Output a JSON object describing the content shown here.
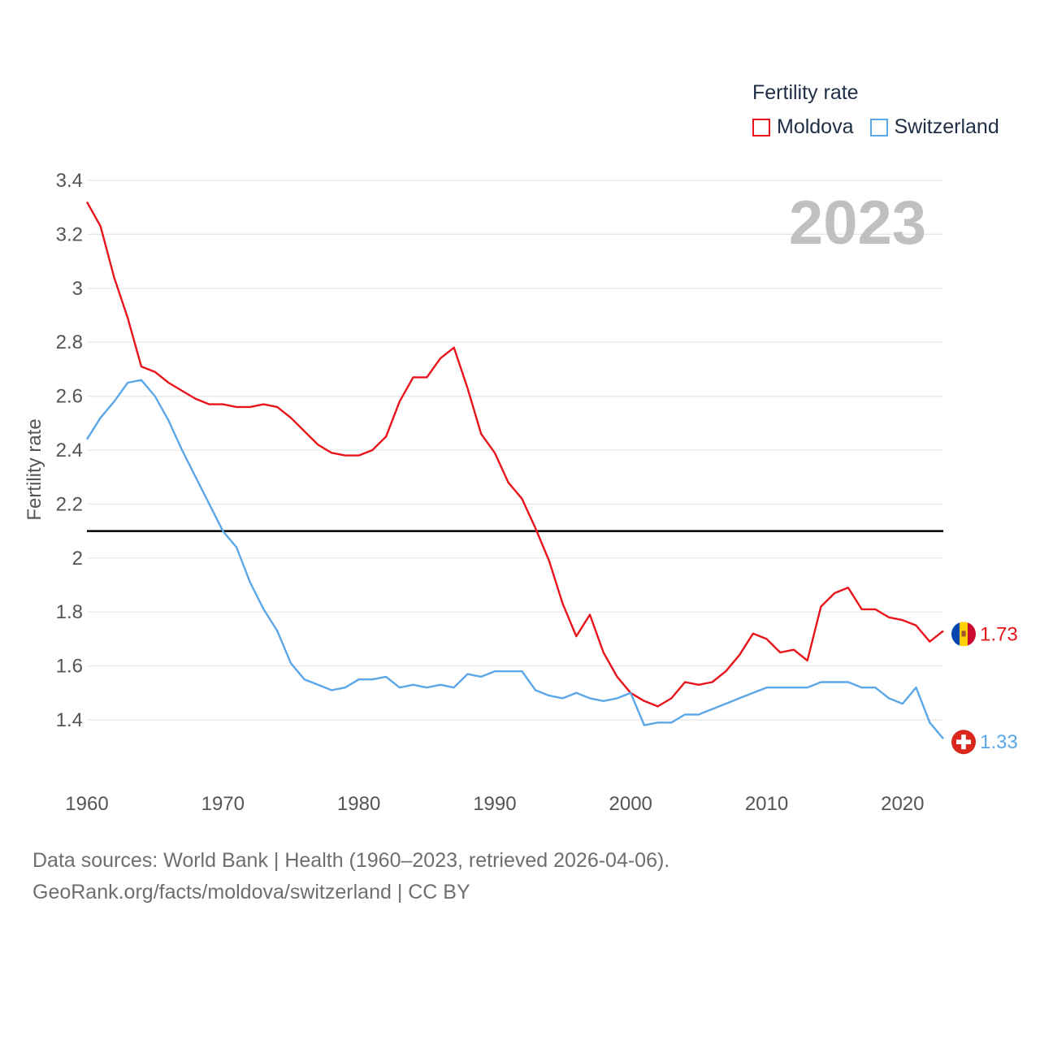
{
  "legend": {
    "title": "Fertility rate",
    "items": [
      {
        "label": "Moldova",
        "color": "#e8141c"
      },
      {
        "label": "Switzerland",
        "color": "#5ba7e8"
      }
    ]
  },
  "source": {
    "line1": "Data sources: World Bank | Health (1960–2023, retrieved 2026-04-06).",
    "line2": "GeoRank.org/facts/moldova/switzerland | CC BY"
  },
  "chart_data": {
    "type": "line",
    "ylabel": "Fertility rate",
    "year_label": "2023",
    "xlim": [
      1960,
      2023
    ],
    "ylim": [
      1.3,
      3.4
    ],
    "x_ticks": [
      1960,
      1970,
      1980,
      1990,
      2000,
      2010,
      2020
    ],
    "y_ticks": [
      1.4,
      1.6,
      1.8,
      2,
      2.2,
      2.4,
      2.6,
      2.8,
      3,
      3.2,
      3.4
    ],
    "y_tick_labels": [
      "1.4",
      "1.6",
      "1.8",
      "2",
      "2.2",
      "2.4",
      "2.6",
      "2.8",
      "3",
      "3.2",
      "3.4"
    ],
    "reference_line": 2.1,
    "x": [
      1960,
      1961,
      1962,
      1963,
      1964,
      1965,
      1966,
      1967,
      1968,
      1969,
      1970,
      1971,
      1972,
      1973,
      1974,
      1975,
      1976,
      1977,
      1978,
      1979,
      1980,
      1981,
      1982,
      1983,
      1984,
      1985,
      1986,
      1987,
      1988,
      1989,
      1990,
      1991,
      1992,
      1993,
      1994,
      1995,
      1996,
      1997,
      1998,
      1999,
      2000,
      2001,
      2002,
      2003,
      2004,
      2005,
      2006,
      2007,
      2008,
      2009,
      2010,
      2011,
      2012,
      2013,
      2014,
      2015,
      2016,
      2017,
      2018,
      2019,
      2020,
      2021,
      2022,
      2023
    ],
    "series": [
      {
        "name": "Moldova",
        "color": "#e8141c",
        "end_label": "1.73",
        "values": [
          3.32,
          3.23,
          3.04,
          2.89,
          2.71,
          2.69,
          2.65,
          2.62,
          2.59,
          2.57,
          2.57,
          2.56,
          2.56,
          2.57,
          2.56,
          2.52,
          2.47,
          2.42,
          2.39,
          2.38,
          2.38,
          2.4,
          2.45,
          2.58,
          2.67,
          2.67,
          2.74,
          2.78,
          2.63,
          2.46,
          2.39,
          2.28,
          2.22,
          2.11,
          1.99,
          1.83,
          1.71,
          1.79,
          1.65,
          1.56,
          1.5,
          1.47,
          1.45,
          1.48,
          1.54,
          1.53,
          1.54,
          1.58,
          1.64,
          1.72,
          1.7,
          1.65,
          1.66,
          1.62,
          1.82,
          1.87,
          1.89,
          1.81,
          1.81,
          1.78,
          1.77,
          1.75,
          1.69,
          1.73
        ]
      },
      {
        "name": "Switzerland",
        "color": "#5ba7e8",
        "end_label": "1.33",
        "values": [
          2.44,
          2.52,
          2.58,
          2.65,
          2.66,
          2.6,
          2.51,
          2.4,
          2.3,
          2.2,
          2.1,
          2.04,
          1.91,
          1.81,
          1.73,
          1.61,
          1.55,
          1.53,
          1.51,
          1.52,
          1.55,
          1.55,
          1.56,
          1.52,
          1.53,
          1.52,
          1.53,
          1.52,
          1.57,
          1.56,
          1.58,
          1.58,
          1.58,
          1.51,
          1.49,
          1.48,
          1.5,
          1.48,
          1.47,
          1.48,
          1.5,
          1.38,
          1.39,
          1.39,
          1.42,
          1.42,
          1.44,
          1.46,
          1.48,
          1.5,
          1.52,
          1.52,
          1.52,
          1.52,
          1.54,
          1.54,
          1.54,
          1.52,
          1.52,
          1.48,
          1.46,
          1.52,
          1.39,
          1.33
        ]
      }
    ]
  }
}
